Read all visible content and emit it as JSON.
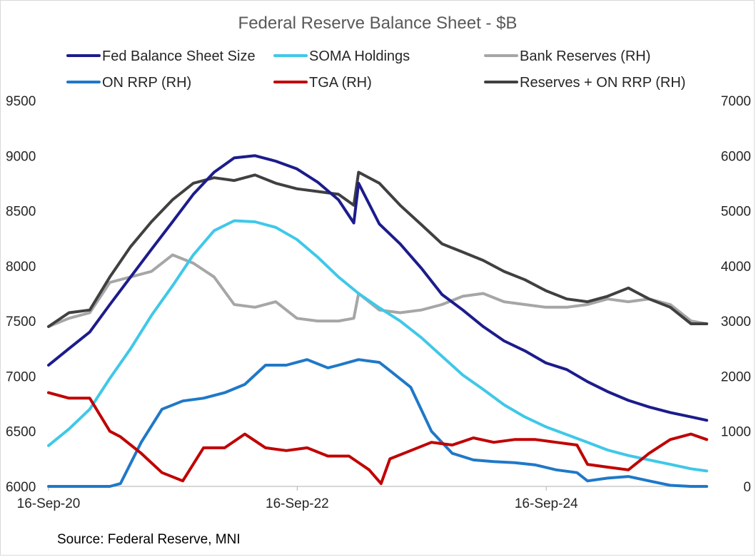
{
  "chart_data": {
    "type": "line",
    "title": "Federal Reserve Balance Sheet - $B",
    "source": "Source: Federal Reserve, MNI",
    "x_ticks": [
      "16-Sep-20",
      "16-Sep-22",
      "16-Sep-24"
    ],
    "x_tick_dates": [
      "2020-09-16",
      "2022-09-16",
      "2024-09-16"
    ],
    "x_range": [
      "2020-09-16",
      "2025-12-31"
    ],
    "y_left": {
      "min": 6000,
      "max": 9500,
      "ticks": [
        "6000",
        "6500",
        "7000",
        "7500",
        "8000",
        "8500",
        "9000",
        "9500"
      ]
    },
    "y_right": {
      "min": 0,
      "max": 7000,
      "ticks": [
        "0",
        "1000",
        "2000",
        "3000",
        "4000",
        "5000",
        "6000",
        "7000"
      ]
    },
    "grid": false,
    "legend_position": "top",
    "series": [
      {
        "name": "Fed Balance Sheet Size",
        "axis": "left",
        "color": "#1c1c8c",
        "x": [
          "2020-09-16",
          "2020-11-15",
          "2021-01-15",
          "2021-03-15",
          "2021-05-15",
          "2021-07-15",
          "2021-09-15",
          "2021-11-15",
          "2022-01-15",
          "2022-03-15",
          "2022-05-15",
          "2022-07-15",
          "2022-09-15",
          "2022-11-15",
          "2023-01-15",
          "2023-03-01",
          "2023-03-15",
          "2023-05-15",
          "2023-07-15",
          "2023-09-15",
          "2023-11-15",
          "2024-01-15",
          "2024-03-15",
          "2024-05-15",
          "2024-07-15",
          "2024-09-15",
          "2024-11-15",
          "2025-01-15",
          "2025-03-15",
          "2025-05-15",
          "2025-07-15",
          "2025-09-15",
          "2025-11-15",
          "2025-12-31"
        ],
        "values": [
          7100,
          7250,
          7400,
          7650,
          7900,
          8150,
          8400,
          8650,
          8850,
          8980,
          9000,
          8950,
          8880,
          8760,
          8600,
          8390,
          8750,
          8380,
          8200,
          7980,
          7740,
          7600,
          7450,
          7320,
          7230,
          7120,
          7060,
          6950,
          6860,
          6780,
          6720,
          6670,
          6630,
          6600
        ]
      },
      {
        "name": "SOMA Holdings",
        "axis": "left",
        "color": "#3fc8e8",
        "x": [
          "2020-09-16",
          "2020-11-15",
          "2021-01-15",
          "2021-03-15",
          "2021-05-15",
          "2021-07-15",
          "2021-09-15",
          "2021-11-15",
          "2022-01-15",
          "2022-03-15",
          "2022-05-15",
          "2022-07-15",
          "2022-09-15",
          "2022-11-15",
          "2023-01-15",
          "2023-03-15",
          "2023-05-15",
          "2023-07-15",
          "2023-09-15",
          "2023-11-15",
          "2024-01-15",
          "2024-03-15",
          "2024-05-15",
          "2024-07-15",
          "2024-09-15",
          "2024-11-15",
          "2025-01-15",
          "2025-03-15",
          "2025-05-15",
          "2025-07-15",
          "2025-09-15",
          "2025-11-15",
          "2025-12-31"
        ],
        "values": [
          6370,
          6520,
          6700,
          6980,
          7250,
          7550,
          7820,
          8100,
          8320,
          8410,
          8400,
          8350,
          8240,
          8080,
          7900,
          7750,
          7620,
          7500,
          7350,
          7180,
          7010,
          6880,
          6740,
          6630,
          6540,
          6470,
          6400,
          6330,
          6280,
          6240,
          6200,
          6160,
          6140
        ]
      },
      {
        "name": "Bank Reserves (RH)",
        "axis": "right",
        "color": "#a6a6a6",
        "x": [
          "2020-09-16",
          "2020-11-15",
          "2021-01-15",
          "2021-03-15",
          "2021-05-15",
          "2021-07-15",
          "2021-09-15",
          "2021-11-15",
          "2022-01-15",
          "2022-03-15",
          "2022-05-15",
          "2022-07-15",
          "2022-09-15",
          "2022-11-15",
          "2023-01-15",
          "2023-03-01",
          "2023-03-15",
          "2023-05-15",
          "2023-07-15",
          "2023-09-15",
          "2023-11-15",
          "2024-01-15",
          "2024-03-15",
          "2024-05-15",
          "2024-07-15",
          "2024-09-15",
          "2024-11-15",
          "2025-01-15",
          "2025-03-15",
          "2025-05-15",
          "2025-07-15",
          "2025-09-15",
          "2025-11-15",
          "2025-12-31"
        ],
        "values": [
          2900,
          3050,
          3150,
          3700,
          3800,
          3900,
          4200,
          4050,
          3800,
          3300,
          3250,
          3350,
          3050,
          3000,
          3000,
          3050,
          3500,
          3200,
          3150,
          3200,
          3300,
          3450,
          3500,
          3350,
          3300,
          3250,
          3250,
          3300,
          3400,
          3350,
          3400,
          3300,
          3000,
          2950
        ]
      },
      {
        "name": "ON RRP (RH)",
        "axis": "right",
        "color": "#1f78c8",
        "x": [
          "2020-09-16",
          "2021-03-15",
          "2021-04-15",
          "2021-06-15",
          "2021-08-15",
          "2021-10-15",
          "2021-12-15",
          "2022-02-15",
          "2022-04-15",
          "2022-06-15",
          "2022-08-15",
          "2022-10-15",
          "2022-12-15",
          "2023-01-15",
          "2023-03-15",
          "2023-05-15",
          "2023-06-15",
          "2023-08-15",
          "2023-10-15",
          "2023-12-15",
          "2024-02-15",
          "2024-04-15",
          "2024-06-15",
          "2024-08-15",
          "2024-10-15",
          "2024-12-15",
          "2025-01-15",
          "2025-03-15",
          "2025-05-15",
          "2025-07-15",
          "2025-09-15",
          "2025-11-15",
          "2025-12-31"
        ],
        "values": [
          0,
          0,
          50,
          800,
          1400,
          1550,
          1600,
          1700,
          1850,
          2200,
          2200,
          2300,
          2150,
          2200,
          2300,
          2250,
          2100,
          1800,
          1000,
          600,
          480,
          450,
          430,
          390,
          300,
          250,
          100,
          150,
          180,
          100,
          20,
          0,
          0
        ]
      },
      {
        "name": "TGA (RH)",
        "axis": "right",
        "color": "#c00000",
        "x": [
          "2020-09-16",
          "2020-11-15",
          "2021-01-15",
          "2021-03-15",
          "2021-04-15",
          "2021-06-15",
          "2021-08-15",
          "2021-10-15",
          "2021-12-15",
          "2022-02-15",
          "2022-04-15",
          "2022-06-15",
          "2022-08-15",
          "2022-10-15",
          "2022-12-15",
          "2023-02-15",
          "2023-04-15",
          "2023-05-20",
          "2023-06-15",
          "2023-08-15",
          "2023-10-15",
          "2023-12-15",
          "2024-02-15",
          "2024-04-15",
          "2024-06-15",
          "2024-08-15",
          "2024-10-15",
          "2024-12-15",
          "2025-01-15",
          "2025-03-15",
          "2025-05-15",
          "2025-07-15",
          "2025-09-15",
          "2025-11-15",
          "2025-12-31"
        ],
        "values": [
          1700,
          1600,
          1600,
          1000,
          900,
          600,
          250,
          100,
          700,
          700,
          950,
          700,
          650,
          700,
          550,
          550,
          300,
          50,
          500,
          650,
          800,
          750,
          880,
          800,
          850,
          850,
          800,
          750,
          400,
          350,
          300,
          600,
          850,
          950,
          850
        ]
      },
      {
        "name": "Reserves + ON RRP (RH)",
        "axis": "right",
        "color": "#404040",
        "x": [
          "2020-09-16",
          "2020-11-15",
          "2021-01-15",
          "2021-03-15",
          "2021-05-15",
          "2021-07-15",
          "2021-09-15",
          "2021-11-15",
          "2022-01-15",
          "2022-03-15",
          "2022-05-15",
          "2022-07-15",
          "2022-09-15",
          "2022-11-15",
          "2023-01-15",
          "2023-03-01",
          "2023-03-15",
          "2023-05-15",
          "2023-07-15",
          "2023-09-15",
          "2023-11-15",
          "2024-01-15",
          "2024-03-15",
          "2024-05-15",
          "2024-07-15",
          "2024-09-15",
          "2024-11-15",
          "2025-01-15",
          "2025-03-15",
          "2025-05-15",
          "2025-07-15",
          "2025-09-15",
          "2025-11-15",
          "2025-12-31"
        ],
        "values": [
          2900,
          3150,
          3200,
          3800,
          4350,
          4800,
          5200,
          5500,
          5600,
          5550,
          5650,
          5500,
          5400,
          5350,
          5300,
          5100,
          5700,
          5500,
          5100,
          4750,
          4400,
          4250,
          4100,
          3900,
          3750,
          3550,
          3400,
          3350,
          3450,
          3600,
          3400,
          3250,
          2950,
          2950
        ]
      }
    ]
  }
}
